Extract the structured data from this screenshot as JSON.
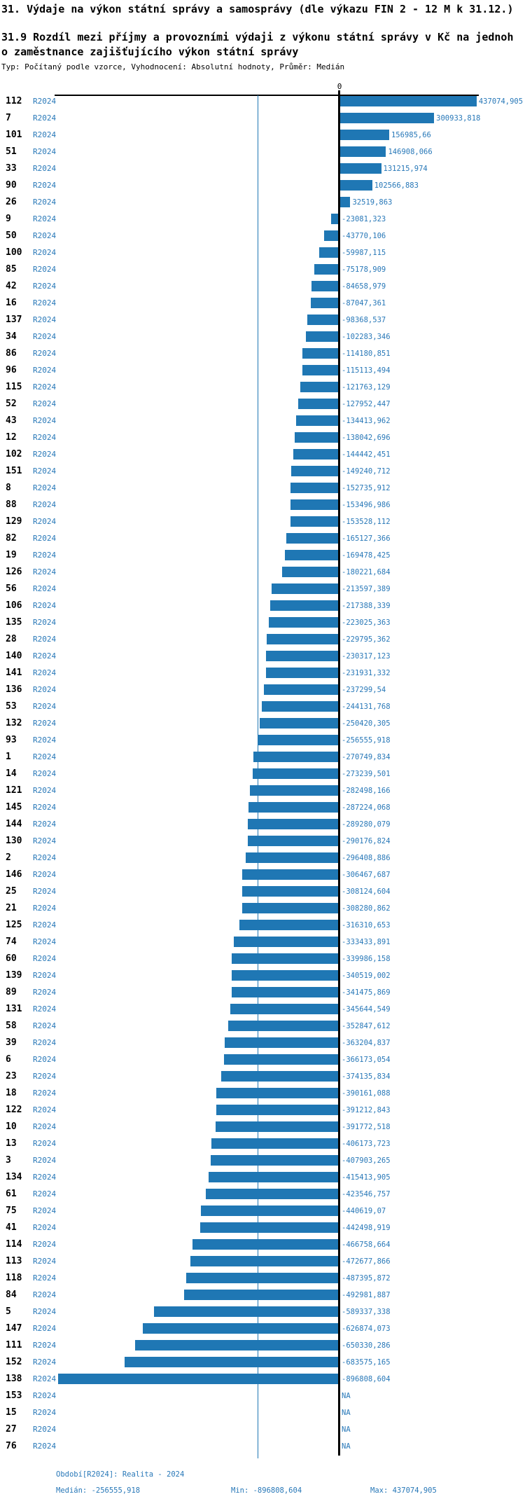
{
  "header": {
    "title": "31. Výdaje na výkon státní správy a samosprávy (dle výkazu FIN 2 - 12 M k 31.12.)",
    "subtitle_line1": "31.9 Rozdíl mezi příjmy a provozními výdaji z výkonu státní správy v Kč na jednoh",
    "subtitle_line2": "o zaměstnance zajišťujícího výkon státní správy",
    "meta": "Typ: Počítaný podle vzorce, Vyhodnocení: Absolutní hodnoty, Průměr: Medián"
  },
  "axis": {
    "zero_label": "0"
  },
  "footer": {
    "period": "Období[R2024]: Realita - 2024",
    "median": "Medián: -256555,918",
    "min": "Min: -896808,604",
    "max": "Max: 437074,905"
  },
  "colors": {
    "bar": "#1f77b4",
    "blue_text": "#2878b8",
    "median_line": "#1f77b4",
    "axis": "#000000"
  },
  "chart_data": {
    "type": "bar",
    "orientation": "horizontal",
    "title": "31.9 Rozdíl mezi příjmy a provozními výdaji z výkonu státní správy v Kč na jednoho zaměstnance zajišťujícího výkon státní správy",
    "period_label": "R2024",
    "xlim": [
      -910000,
      450000
    ],
    "grid": false,
    "legend": false,
    "median": -256555.918,
    "min": -896808.604,
    "max": 437074.905,
    "median_line_value": -256555.918,
    "rows": [
      {
        "id": "112",
        "value": 437074.905,
        "label": "437074,905"
      },
      {
        "id": "7",
        "value": 300933.818,
        "label": "300933,818"
      },
      {
        "id": "101",
        "value": 156985.66,
        "label": "156985,66"
      },
      {
        "id": "51",
        "value": 146908.066,
        "label": "146908,066"
      },
      {
        "id": "33",
        "value": 131215.974,
        "label": "131215,974"
      },
      {
        "id": "90",
        "value": 102566.883,
        "label": "102566,883"
      },
      {
        "id": "26",
        "value": 32519.863,
        "label": "32519,863"
      },
      {
        "id": "9",
        "value": -23081.323,
        "label": "-23081,323"
      },
      {
        "id": "50",
        "value": -43770.106,
        "label": "-43770,106"
      },
      {
        "id": "100",
        "value": -59987.115,
        "label": "-59987,115"
      },
      {
        "id": "85",
        "value": -75178.909,
        "label": "-75178,909"
      },
      {
        "id": "42",
        "value": -84658.979,
        "label": "-84658,979"
      },
      {
        "id": "16",
        "value": -87047.361,
        "label": "-87047,361"
      },
      {
        "id": "137",
        "value": -98368.537,
        "label": "-98368,537"
      },
      {
        "id": "34",
        "value": -102283.346,
        "label": "-102283,346"
      },
      {
        "id": "86",
        "value": -114180.851,
        "label": "-114180,851"
      },
      {
        "id": "96",
        "value": -115113.494,
        "label": "-115113,494"
      },
      {
        "id": "115",
        "value": -121763.129,
        "label": "-121763,129"
      },
      {
        "id": "52",
        "value": -127952.447,
        "label": "-127952,447"
      },
      {
        "id": "43",
        "value": -134413.962,
        "label": "-134413,962"
      },
      {
        "id": "12",
        "value": -138042.696,
        "label": "-138042,696"
      },
      {
        "id": "102",
        "value": -144442.451,
        "label": "-144442,451"
      },
      {
        "id": "151",
        "value": -149240.712,
        "label": "-149240,712"
      },
      {
        "id": "8",
        "value": -152735.912,
        "label": "-152735,912"
      },
      {
        "id": "88",
        "value": -153496.986,
        "label": "-153496,986"
      },
      {
        "id": "129",
        "value": -153528.112,
        "label": "-153528,112"
      },
      {
        "id": "82",
        "value": -165127.366,
        "label": "-165127,366"
      },
      {
        "id": "19",
        "value": -169478.425,
        "label": "-169478,425"
      },
      {
        "id": "126",
        "value": -180221.684,
        "label": "-180221,684"
      },
      {
        "id": "56",
        "value": -213597.389,
        "label": "-213597,389"
      },
      {
        "id": "106",
        "value": -217388.339,
        "label": "-217388,339"
      },
      {
        "id": "135",
        "value": -223025.363,
        "label": "-223025,363"
      },
      {
        "id": "28",
        "value": -229795.362,
        "label": "-229795,362"
      },
      {
        "id": "140",
        "value": -230317.123,
        "label": "-230317,123"
      },
      {
        "id": "141",
        "value": -231931.332,
        "label": "-231931,332"
      },
      {
        "id": "136",
        "value": -237299.54,
        "label": "-237299,54"
      },
      {
        "id": "53",
        "value": -244131.768,
        "label": "-244131,768"
      },
      {
        "id": "132",
        "value": -250420.305,
        "label": "-250420,305"
      },
      {
        "id": "93",
        "value": -256555.918,
        "label": "-256555,918"
      },
      {
        "id": "1",
        "value": -270749.834,
        "label": "-270749,834"
      },
      {
        "id": "14",
        "value": -273239.501,
        "label": "-273239,501"
      },
      {
        "id": "121",
        "value": -282498.166,
        "label": "-282498,166"
      },
      {
        "id": "145",
        "value": -287224.068,
        "label": "-287224,068"
      },
      {
        "id": "144",
        "value": -289280.079,
        "label": "-289280,079"
      },
      {
        "id": "130",
        "value": -290176.824,
        "label": "-290176,824"
      },
      {
        "id": "2",
        "value": -296408.886,
        "label": "-296408,886"
      },
      {
        "id": "146",
        "value": -306467.687,
        "label": "-306467,687"
      },
      {
        "id": "25",
        "value": -308124.604,
        "label": "-308124,604"
      },
      {
        "id": "21",
        "value": -308280.862,
        "label": "-308280,862"
      },
      {
        "id": "125",
        "value": -316310.653,
        "label": "-316310,653"
      },
      {
        "id": "74",
        "value": -333433.891,
        "label": "-333433,891"
      },
      {
        "id": "60",
        "value": -339986.158,
        "label": "-339986,158"
      },
      {
        "id": "139",
        "value": -340519.002,
        "label": "-340519,002"
      },
      {
        "id": "89",
        "value": -341475.869,
        "label": "-341475,869"
      },
      {
        "id": "131",
        "value": -345644.549,
        "label": "-345644,549"
      },
      {
        "id": "58",
        "value": -352847.612,
        "label": "-352847,612"
      },
      {
        "id": "39",
        "value": -363204.837,
        "label": "-363204,837"
      },
      {
        "id": "6",
        "value": -366173.054,
        "label": "-366173,054"
      },
      {
        "id": "23",
        "value": -374135.834,
        "label": "-374135,834"
      },
      {
        "id": "18",
        "value": -390161.088,
        "label": "-390161,088"
      },
      {
        "id": "122",
        "value": -391212.843,
        "label": "-391212,843"
      },
      {
        "id": "10",
        "value": -391772.518,
        "label": "-391772,518"
      },
      {
        "id": "13",
        "value": -406173.723,
        "label": "-406173,723"
      },
      {
        "id": "3",
        "value": -407903.265,
        "label": "-407903,265"
      },
      {
        "id": "134",
        "value": -415413.905,
        "label": "-415413,905"
      },
      {
        "id": "61",
        "value": -423546.757,
        "label": "-423546,757"
      },
      {
        "id": "75",
        "value": -440619.07,
        "label": "-440619,07"
      },
      {
        "id": "41",
        "value": -442498.919,
        "label": "-442498,919"
      },
      {
        "id": "114",
        "value": -466758.664,
        "label": "-466758,664"
      },
      {
        "id": "113",
        "value": -472677.866,
        "label": "-472677,866"
      },
      {
        "id": "118",
        "value": -487395.872,
        "label": "-487395,872"
      },
      {
        "id": "84",
        "value": -492981.887,
        "label": "-492981,887"
      },
      {
        "id": "5",
        "value": -589337.338,
        "label": "-589337,338"
      },
      {
        "id": "147",
        "value": -626874.073,
        "label": "-626874,073"
      },
      {
        "id": "111",
        "value": -650330.286,
        "label": "-650330,286"
      },
      {
        "id": "152",
        "value": -683575.165,
        "label": "-683575,165"
      },
      {
        "id": "138",
        "value": -896808.604,
        "label": "-896808,604"
      },
      {
        "id": "153",
        "value": null,
        "label": "NA"
      },
      {
        "id": "15",
        "value": null,
        "label": "NA"
      },
      {
        "id": "27",
        "value": null,
        "label": "NA"
      },
      {
        "id": "76",
        "value": null,
        "label": "NA"
      }
    ]
  }
}
